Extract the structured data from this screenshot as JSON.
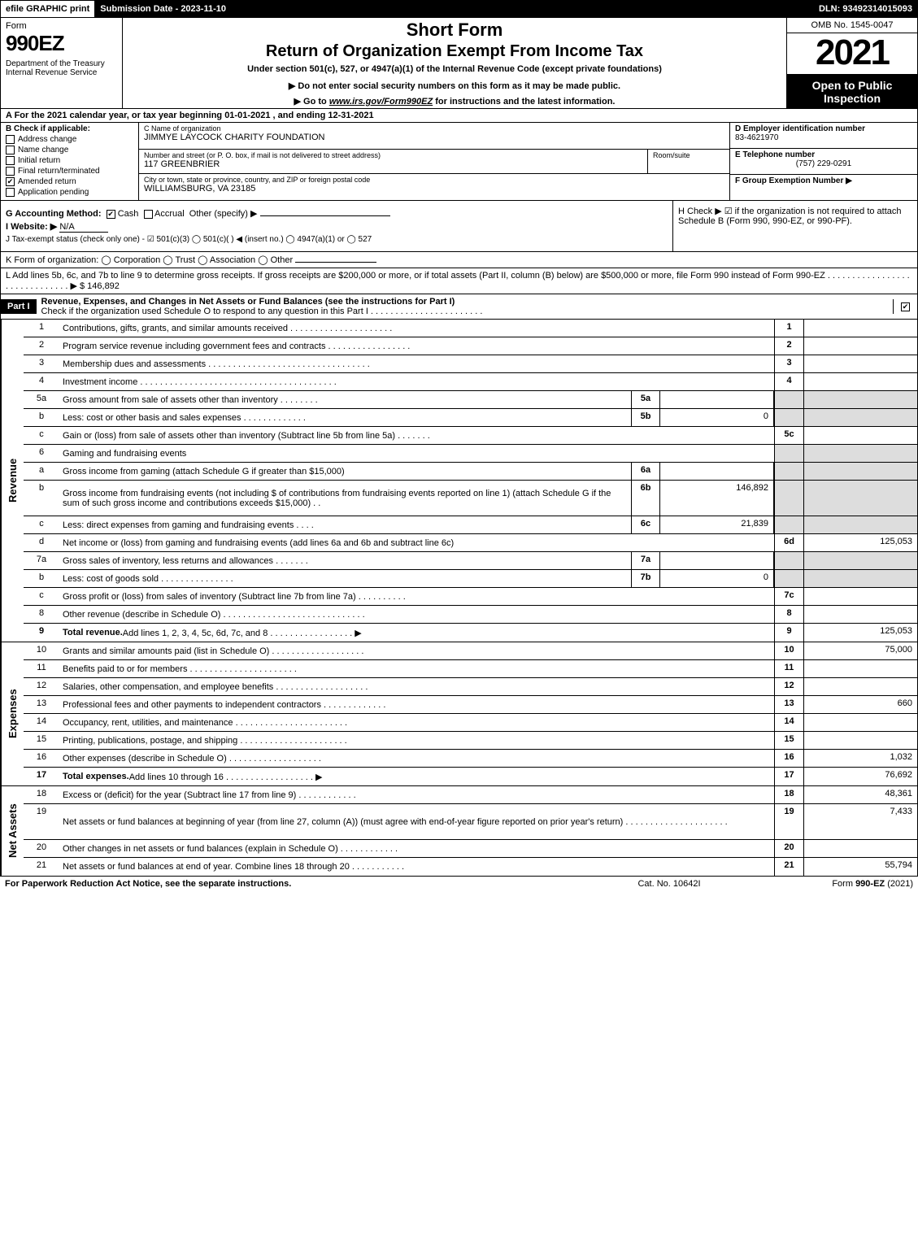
{
  "top": {
    "efile": "efile GRAPHIC print",
    "submission": "Submission Date - 2023-11-10",
    "dln": "DLN: 93492314015093"
  },
  "header": {
    "form_word": "Form",
    "form_num": "990EZ",
    "dept": "Department of the Treasury\nInternal Revenue Service",
    "short": "Short Form",
    "return_title": "Return of Organization Exempt From Income Tax",
    "under": "Under section 501(c), 527, or 4947(a)(1) of the Internal Revenue Code (except private foundations)",
    "warn": "▶ Do not enter social security numbers on this form as it may be made public.",
    "link_pre": "▶ Go to ",
    "link_url": "www.irs.gov/Form990EZ",
    "link_post": " for instructions and the latest information.",
    "omb": "OMB No. 1545-0047",
    "year": "2021",
    "open": "Open to Public Inspection"
  },
  "line_a": "A  For the 2021 calendar year, or tax year beginning 01-01-2021 , and ending 12-31-2021",
  "section_b": {
    "title": "B  Check if applicable:",
    "items": [
      {
        "label": "Address change",
        "checked": false
      },
      {
        "label": "Name change",
        "checked": false
      },
      {
        "label": "Initial return",
        "checked": false
      },
      {
        "label": "Final return/terminated",
        "checked": false
      },
      {
        "label": "Amended return",
        "checked": true
      },
      {
        "label": "Application pending",
        "checked": false
      }
    ]
  },
  "section_c": {
    "name_label": "C Name of organization",
    "name": "JIMMYE LAYCOCK CHARITY FOUNDATION",
    "addr_label": "Number and street (or P. O. box, if mail is not delivered to street address)",
    "addr": "117 GREENBRIER",
    "room_label": "Room/suite",
    "city_label": "City or town, state or province, country, and ZIP or foreign postal code",
    "city": "WILLIAMSBURG, VA  23185"
  },
  "section_d": {
    "ein_label": "D Employer identification number",
    "ein": "83-4621970",
    "tel_label": "E Telephone number",
    "tel": "(757) 229-0291",
    "grp_label": "F Group Exemption Number  ▶"
  },
  "section_g": {
    "label": "G Accounting Method:",
    "cash": "Cash",
    "accrual": "Accrual",
    "other": "Other (specify) ▶"
  },
  "section_h": "H  Check ▶ ☑ if the organization is not required to attach Schedule B (Form 990, 990-EZ, or 990-PF).",
  "section_i": {
    "label": "I Website: ▶",
    "val": "N/A"
  },
  "section_j": "J Tax-exempt status (check only one) - ☑ 501(c)(3)  ◯ 501(c)(  ) ◀ (insert no.)  ◯ 4947(a)(1) or  ◯ 527",
  "section_k": "K Form of organization:   ◯ Corporation   ◯ Trust   ◯ Association   ◯ Other",
  "section_l": {
    "text": "L Add lines 5b, 6c, and 7b to line 9 to determine gross receipts. If gross receipts are $200,000 or more, or if total assets (Part II, column (B) below) are $500,000 or more, file Form 990 instead of Form 990-EZ . . . . . . . . . . . . . . . . . . . . . . . . . . . . . . ▶ $",
    "amount": "146,892"
  },
  "part1": {
    "tag": "Part I",
    "title": "Revenue, Expenses, and Changes in Net Assets or Fund Balances (see the instructions for Part I)",
    "check_line": "Check if the organization used Schedule O to respond to any question in this Part I . . . . . . . . . . . . . . . . . . . . . . .",
    "checked": true
  },
  "revenue_label": "Revenue",
  "expenses_label": "Expenses",
  "netassets_label": "Net Assets",
  "rows_rev": [
    {
      "n": "1",
      "desc": "Contributions, gifts, grants, and similar amounts received . . . . . . . . . . . . . . . . . . . . .",
      "rn": "1",
      "rv": ""
    },
    {
      "n": "2",
      "desc": "Program service revenue including government fees and contracts . . . . . . . . . . . . . . . . .",
      "rn": "2",
      "rv": ""
    },
    {
      "n": "3",
      "desc": "Membership dues and assessments . . . . . . . . . . . . . . . . . . . . . . . . . . . . . . . . .",
      "rn": "3",
      "rv": ""
    },
    {
      "n": "4",
      "desc": "Investment income . . . . . . . . . . . . . . . . . . . . . . . . . . . . . . . . . . . . . . . .",
      "rn": "4",
      "rv": ""
    },
    {
      "n": "5a",
      "desc": "Gross amount from sale of assets other than inventory . . . . . . . .",
      "mn": "5a",
      "mv": "",
      "shaded": true
    },
    {
      "n": "b",
      "desc": "Less: cost or other basis and sales expenses . . . . . . . . . . . . .",
      "mn": "5b",
      "mv": "0",
      "shaded": true
    },
    {
      "n": "c",
      "desc": "Gain or (loss) from sale of assets other than inventory (Subtract line 5b from line 5a) . . . . . . .",
      "rn": "5c",
      "rv": ""
    },
    {
      "n": "6",
      "desc": "Gaming and fundraising events",
      "shaded": true,
      "notext": true
    },
    {
      "n": "a",
      "desc": "Gross income from gaming (attach Schedule G if greater than $15,000)",
      "mn": "6a",
      "mv": "",
      "shaded": true
    },
    {
      "n": "b",
      "desc": "Gross income from fundraising events (not including $                    of contributions from fundraising events reported on line 1) (attach Schedule G if the sum of such gross income and contributions exceeds $15,000)   .  .",
      "mn": "6b",
      "mv": "146,892",
      "shaded": true,
      "tall": true
    },
    {
      "n": "c",
      "desc": "Less: direct expenses from gaming and fundraising events   .  .  .  .",
      "mn": "6c",
      "mv": "21,839",
      "shaded": true
    },
    {
      "n": "d",
      "desc": "Net income or (loss) from gaming and fundraising events (add lines 6a and 6b and subtract line 6c)",
      "rn": "6d",
      "rv": "125,053"
    },
    {
      "n": "7a",
      "desc": "Gross sales of inventory, less returns and allowances . . . . . . .",
      "mn": "7a",
      "mv": "",
      "shaded": true
    },
    {
      "n": "b",
      "desc": "Less: cost of goods sold     .   .   .   .   .   .   .   .   .   .   .   .   .   .   .",
      "mn": "7b",
      "mv": "0",
      "shaded": true
    },
    {
      "n": "c",
      "desc": "Gross profit or (loss) from sales of inventory (Subtract line 7b from line 7a) . . . . . . . . . .",
      "rn": "7c",
      "rv": ""
    },
    {
      "n": "8",
      "desc": "Other revenue (describe in Schedule O) . . . . . . . . . . . . . . . . . . . . . . . . . . . . .",
      "rn": "8",
      "rv": ""
    },
    {
      "n": "9",
      "desc": "Total revenue. Add lines 1, 2, 3, 4, 5c, 6d, 7c, and 8  .  .  .  .  .  .  .  .  .  .  .  .  .  .  .  .  .  ▶",
      "rn": "9",
      "rv": "125,053",
      "bold": true
    }
  ],
  "rows_exp": [
    {
      "n": "10",
      "desc": "Grants and similar amounts paid (list in Schedule O) .  .  .  .  .  .  .  .  .  .  .  .  .  .  .  .  .  .  .",
      "rn": "10",
      "rv": "75,000"
    },
    {
      "n": "11",
      "desc": "Benefits paid to or for members     .   .   .   .   .   .   .   .   .   .   .   .   .   .   .   .   .   .   .   .   .   .",
      "rn": "11",
      "rv": ""
    },
    {
      "n": "12",
      "desc": "Salaries, other compensation, and employee benefits .  .  .  .  .  .  .  .  .  .  .  .  .  .  .  .  .  .  .",
      "rn": "12",
      "rv": ""
    },
    {
      "n": "13",
      "desc": "Professional fees and other payments to independent contractors .  .  .  .  .  .  .  .  .  .  .  .  .",
      "rn": "13",
      "rv": "660"
    },
    {
      "n": "14",
      "desc": "Occupancy, rent, utilities, and maintenance .  .  .  .  .  .  .  .  .  .  .  .  .  .  .  .  .  .  .  .  .  .  .",
      "rn": "14",
      "rv": ""
    },
    {
      "n": "15",
      "desc": "Printing, publications, postage, and shipping .  .  .  .  .  .  .  .  .  .  .  .  .  .  .  .  .  .  .  .  .  .",
      "rn": "15",
      "rv": ""
    },
    {
      "n": "16",
      "desc": "Other expenses (describe in Schedule O)     .   .   .   .   .   .   .   .   .   .   .   .   .   .   .   .   .   .   .",
      "rn": "16",
      "rv": "1,032"
    },
    {
      "n": "17",
      "desc": "Total expenses. Add lines 10 through 16     .   .   .   .   .   .   .   .   .   .   .   .   .   .   .   .   .   .   ▶",
      "rn": "17",
      "rv": "76,692",
      "bold": true
    }
  ],
  "rows_net": [
    {
      "n": "18",
      "desc": "Excess or (deficit) for the year (Subtract line 17 from line 9)        .   .   .   .   .   .   .   .   .   .   .   .",
      "rn": "18",
      "rv": "48,361"
    },
    {
      "n": "19",
      "desc": "Net assets or fund balances at beginning of year (from line 27, column (A)) (must agree with end-of-year figure reported on prior year's return) .  .  .  .  .  .  .  .  .  .  .  .  .  .  .  .  .  .  .  .  .",
      "rn": "19",
      "rv": "7,433",
      "tall": true
    },
    {
      "n": "20",
      "desc": "Other changes in net assets or fund balances (explain in Schedule O) .  .  .  .  .  .  .  .  .  .  .  .",
      "rn": "20",
      "rv": ""
    },
    {
      "n": "21",
      "desc": "Net assets or fund balances at end of year. Combine lines 18 through 20 .  .  .  .  .  .  .  .  .  .  .",
      "rn": "21",
      "rv": "55,794"
    }
  ],
  "footer": {
    "left": "For Paperwork Reduction Act Notice, see the separate instructions.",
    "center": "Cat. No. 10642I",
    "right_pre": "Form ",
    "right_bold": "990-EZ",
    "right_post": " (2021)"
  }
}
